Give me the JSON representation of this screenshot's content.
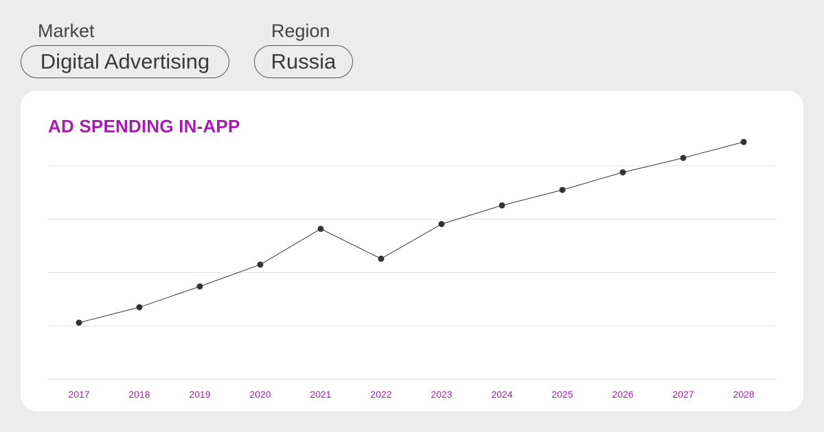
{
  "filters": {
    "market_label": "Market",
    "market_value": "Digital Advertising",
    "region_label": "Region",
    "region_value": "Russia"
  },
  "colors": {
    "accent": "#a61cb0",
    "line": "#333333",
    "grid": "#e2e2e2",
    "background": "#ececec",
    "card": "#ffffff"
  },
  "chart_data": {
    "type": "line",
    "title": "AD SPENDING IN-APP",
    "xlabel": "",
    "ylabel": "",
    "categories": [
      "2017",
      "2018",
      "2019",
      "2020",
      "2021",
      "2022",
      "2023",
      "2024",
      "2025",
      "2026",
      "2027",
      "2028"
    ],
    "series": [
      {
        "values": [
          1.06,
          1.35,
          1.74,
          2.15,
          2.82,
          2.26,
          2.91,
          3.26,
          3.55,
          3.88,
          4.15,
          4.45
        ]
      }
    ],
    "ylim": [
      0,
      4.0
    ],
    "yticks": [
      0,
      1,
      2,
      3,
      4
    ],
    "ytick_labels_visible": false,
    "grid": true,
    "legend": "none"
  }
}
